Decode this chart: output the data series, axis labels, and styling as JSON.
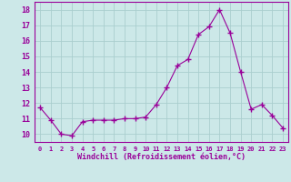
{
  "x": [
    0,
    1,
    2,
    3,
    4,
    5,
    6,
    7,
    8,
    9,
    10,
    11,
    12,
    13,
    14,
    15,
    16,
    17,
    18,
    19,
    20,
    21,
    22,
    23
  ],
  "y": [
    11.7,
    10.9,
    10.0,
    9.9,
    10.8,
    10.9,
    10.9,
    10.9,
    11.0,
    11.0,
    11.1,
    11.9,
    13.0,
    14.4,
    14.8,
    16.4,
    16.9,
    18.0,
    16.5,
    14.0,
    11.6,
    11.9,
    11.2,
    10.4
  ],
  "line_color": "#990099",
  "marker": "+",
  "marker_size": 4,
  "bg_color": "#cce8e8",
  "grid_color": "#aacece",
  "xlabel": "Windchill (Refroidissement éolien,°C)",
  "xlabel_color": "#990099",
  "tick_color": "#990099",
  "label_color": "#990099",
  "ylim": [
    9.5,
    18.5
  ],
  "xlim": [
    -0.5,
    23.5
  ],
  "yticks": [
    10,
    11,
    12,
    13,
    14,
    15,
    16,
    17,
    18
  ],
  "xticks": [
    0,
    1,
    2,
    3,
    4,
    5,
    6,
    7,
    8,
    9,
    10,
    11,
    12,
    13,
    14,
    15,
    16,
    17,
    18,
    19,
    20,
    21,
    22,
    23
  ]
}
